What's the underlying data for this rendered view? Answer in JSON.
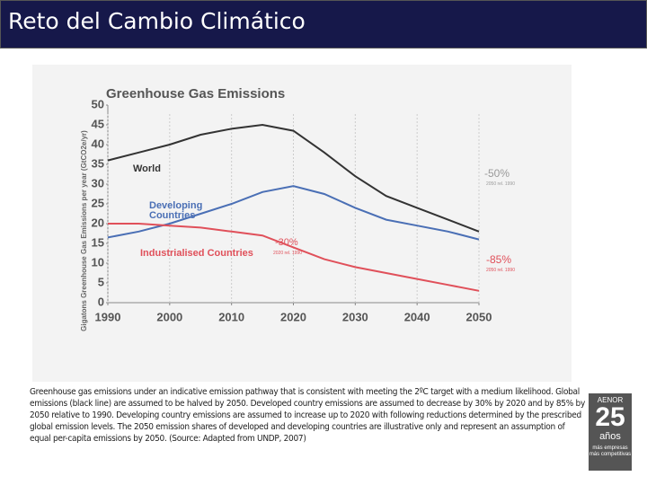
{
  "slide": {
    "title": "Reto del Cambio Climático",
    "caption": "Greenhouse gas emissions under an indicative emission pathway that is consistent with meeting the 2ºC target with a medium likelihood. Global emissions (black line) are assumed to be halved by 2050. Developed country emissions are assumed to decrease by 30% by 2020 and by 85% by 2050 relative to 1990. Developing country emissions are assumed to increase up to 2020 with following reductions determined by the prescribed global emission levels. The 2050 emission shares of developed and developing countries are illustrative only and represent an assumption of equal per-capita emissions by 2050. (Source: Adapted from UNDP, 2007)",
    "logo": {
      "brand": "AENOR",
      "number": "25",
      "word": "años",
      "tagline": "más empresas más competitivas"
    }
  },
  "chart_data": {
    "type": "line",
    "title": "Greenhouse Gas Emissions",
    "y_label": "Gigatons Greenhouse Gas Emissions per year (GtCO2e/yr)",
    "x": [
      1990,
      1995,
      2000,
      2005,
      2010,
      2015,
      2020,
      2025,
      2030,
      2035,
      2040,
      2045,
      2050
    ],
    "series": [
      {
        "name": "World",
        "color": "#333333",
        "values": [
          36,
          38,
          40,
          42.5,
          44,
          45,
          43.5,
          38,
          32,
          27,
          24,
          21,
          18
        ]
      },
      {
        "name": "Developing Countries",
        "color": "#4a6fb5",
        "values": [
          16.5,
          18,
          20,
          22.5,
          25,
          28,
          29.5,
          27.5,
          24,
          21,
          19.5,
          18,
          16
        ]
      },
      {
        "name": "Industrialised Countries",
        "color": "#e0505a",
        "values": [
          20,
          20,
          19.5,
          19,
          18,
          17,
          14,
          11,
          9,
          7.5,
          6,
          4.5,
          3
        ]
      }
    ],
    "annotations": [
      {
        "text": "-50%",
        "color": "#999999"
      },
      {
        "text": "2050 rel. 1990",
        "color": "#999999"
      },
      {
        "text": "-30%",
        "color": "#e0505a"
      },
      {
        "text": "2020 rel. 1990",
        "color": "#e0505a"
      },
      {
        "text": "-85%",
        "color": "#e0505a"
      },
      {
        "text": "2050 rel. 1990",
        "color": "#e0505a"
      }
    ],
    "xlim": [
      1990,
      2050
    ],
    "xticks": [
      1990,
      2000,
      2010,
      2020,
      2030,
      2040,
      2050
    ],
    "ylim": [
      0,
      50
    ],
    "yticks": [
      0,
      5,
      10,
      15,
      20,
      25,
      30,
      35,
      40,
      45,
      50
    ]
  }
}
